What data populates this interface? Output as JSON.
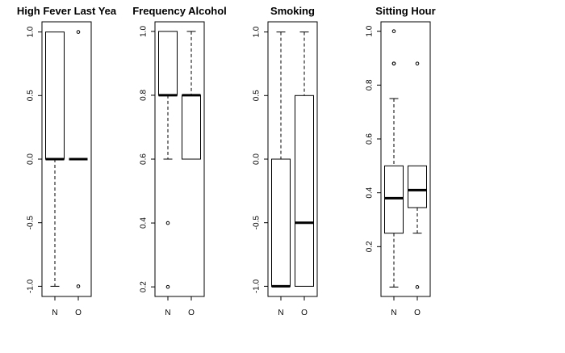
{
  "chart_data": [
    {
      "type": "boxplot",
      "title": "High Fever Last Yea",
      "categories": [
        "N",
        "O"
      ],
      "ylim": [
        -1.08,
        1.08
      ],
      "yticks": [
        -1.0,
        -0.5,
        0.0,
        0.5,
        1.0
      ],
      "ytick_labels": [
        "-1.0",
        "-0.5",
        "0.0",
        "0.5",
        "1.0"
      ],
      "boxes": [
        {
          "category": "N",
          "whisker_low": -1.0,
          "q1": 0.0,
          "median": 0.0,
          "q3": 1.0,
          "whisker_high": 1.0,
          "outliers": []
        },
        {
          "category": "O",
          "whisker_low": 0.0,
          "q1": 0.0,
          "median": 0.0,
          "q3": 0.0,
          "whisker_high": 0.0,
          "outliers": [
            1.0,
            -1.0
          ]
        }
      ]
    },
    {
      "type": "boxplot",
      "title": "Frequency Alcohol",
      "categories": [
        "N",
        "O"
      ],
      "ylim": [
        0.17,
        1.03
      ],
      "yticks": [
        0.2,
        0.4,
        0.6,
        0.8,
        1.0
      ],
      "ytick_labels": [
        "0.2",
        "0.4",
        "0.6",
        "0.8",
        "1.0"
      ],
      "boxes": [
        {
          "category": "N",
          "whisker_low": 0.6,
          "q1": 0.8,
          "median": 0.8,
          "q3": 1.0,
          "whisker_high": 1.0,
          "outliers": [
            0.4,
            0.2
          ]
        },
        {
          "category": "O",
          "whisker_low": 0.6,
          "q1": 0.6,
          "median": 0.8,
          "q3": 0.8,
          "whisker_high": 1.0,
          "outliers": []
        }
      ]
    },
    {
      "type": "boxplot",
      "title": "Smoking",
      "categories": [
        "N",
        "O"
      ],
      "ylim": [
        -1.08,
        1.08
      ],
      "yticks": [
        -1.0,
        -0.5,
        0.0,
        0.5,
        1.0
      ],
      "ytick_labels": [
        "-1.0",
        "-0.5",
        "0.0",
        "0.5",
        "1.0"
      ],
      "boxes": [
        {
          "category": "N",
          "whisker_low": -1.0,
          "q1": -1.0,
          "median": -1.0,
          "q3": 0.0,
          "whisker_high": 1.0,
          "outliers": []
        },
        {
          "category": "O",
          "whisker_low": -1.0,
          "q1": -1.0,
          "median": -0.5,
          "q3": 0.5,
          "whisker_high": 1.0,
          "outliers": []
        }
      ]
    },
    {
      "type": "boxplot",
      "title": "Sitting Hour",
      "categories": [
        "N",
        "O"
      ],
      "ylim": [
        0.015,
        1.035
      ],
      "yticks": [
        0.2,
        0.4,
        0.6,
        0.8,
        1.0
      ],
      "ytick_labels": [
        "0.2",
        "0.4",
        "0.6",
        "0.8",
        "1.0"
      ],
      "boxes": [
        {
          "category": "N",
          "whisker_low": 0.05,
          "q1": 0.25,
          "median": 0.38,
          "q3": 0.5,
          "whisker_high": 0.75,
          "outliers": [
            0.88,
            0.88,
            1.0
          ]
        },
        {
          "category": "O",
          "whisker_low": 0.25,
          "q1": 0.345,
          "median": 0.41,
          "q3": 0.5,
          "whisker_high": 0.5,
          "outliers": [
            0.88,
            0.05
          ]
        }
      ]
    }
  ]
}
